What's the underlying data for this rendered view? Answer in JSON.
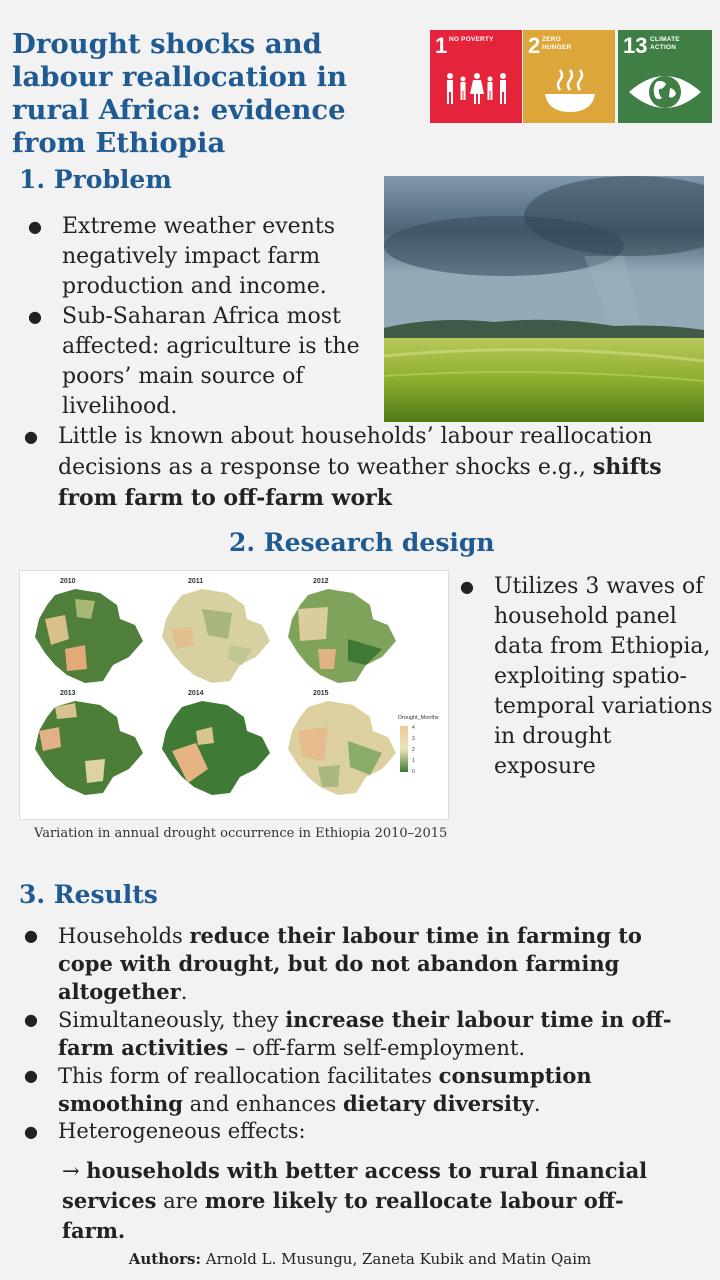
{
  "title": "Drought shocks and labour reallocation in rural Africa: evidence from Ethiopia",
  "sdg": [
    {
      "num": "1",
      "label": "NO POVERTY",
      "color": "#e5243b",
      "icon": "family-icon"
    },
    {
      "num": "2",
      "label": "ZERO HUNGER",
      "color": "#dda63a",
      "icon": "bowl-icon"
    },
    {
      "num": "13",
      "label": "CLIMATE ACTION",
      "color": "#3f7e44",
      "icon": "earth-eye-icon"
    }
  ],
  "problem": {
    "heading": "1. Problem",
    "b1": "Extreme weather events negatively impact farm production and income.",
    "b2": "Sub-Saharan Africa most affected: agriculture is the poors’ main source of livelihood.",
    "b3_text": "Little is known about households’ labour reallocation decisions as a response to weather shocks e.g., ",
    "b3_bold": "shifts from farm to off-farm work"
  },
  "design": {
    "heading": "2. Research design",
    "bullet": "Utilizes 3 waves of household panel data from Ethiopia, exploiting spatio-temporal variations in drought exposure",
    "caption": "Variation in annual drought occurrence in Ethiopia 2010–2015",
    "map_years": [
      "2010",
      "2011",
      "2012",
      "2013",
      "2014",
      "2015"
    ],
    "legend_title": "Drought_Months",
    "legend_ticks": [
      "4",
      "3",
      "2",
      "1",
      "0"
    ]
  },
  "results": {
    "heading": "3. Results",
    "r1a": "Households ",
    "r1b": "reduce their labour time in farming to cope with drought, but do not abandon farming altogether",
    "r1c": ".",
    "r2a": "Simultaneously, they ",
    "r2b": "increase their labour time in off-farm activities",
    "r2c": " – off-farm self-employment.",
    "r3a": "This form of reallocation facilitates ",
    "r3b": "consumption smoothing",
    "r3c": " and enhances ",
    "r3d": "dietary diversity",
    "r3e": ".",
    "r4": "Heterogeneous effects:",
    "r5a": "→ ",
    "r5b": "households with better access to rural financial services",
    "r5c": " are ",
    "r5d": "more likely to reallocate labour off-farm."
  },
  "authors": {
    "label": "Authors:",
    "names": " Arnold L. Musungu, Zaneta Kubik and Matin Qaim"
  }
}
